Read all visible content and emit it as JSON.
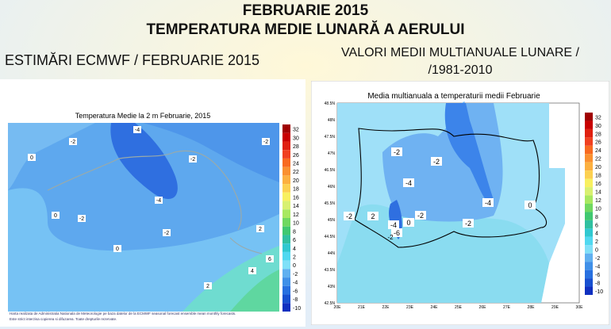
{
  "header": {
    "title": "FEBRUARIE 2015",
    "subtitle": "TEMPERATURA MEDIE LUNARĂ A AERULUI"
  },
  "left": {
    "heading": "ESTIMĂRI ECMWF / FEBRUARIE 2015",
    "map_title": "Temperatura Medie la 2 m Februarie, 2015",
    "colorbar": [
      "32",
      "30",
      "28",
      "26",
      "24",
      "22",
      "20",
      "18",
      "16",
      "14",
      "12",
      "10",
      "8",
      "6",
      "4",
      "2",
      "0",
      "-2",
      "-4",
      "-6",
      "-8",
      "-10"
    ],
    "contour_labels": [
      "-4",
      "-2",
      "0",
      "-2",
      "-2",
      "-4",
      "0",
      "-2",
      "-2",
      "2",
      "0",
      "6",
      "4",
      "2"
    ],
    "footnote": [
      "Harta realizata de Administratia Nationala de Meteorologie pe baza datelor de la ECMWF seasonal forecast ensemble mean monthly forecasts.",
      "Este strict interzisa copierea si difuzarea. Toate drepturile rezervate."
    ]
  },
  "right": {
    "heading": [
      "VALORI MEDII MULTIANUALE LUNARE /",
      "/1981-2010"
    ],
    "map_title": "Media multianuala a temperaturii medii Februarie",
    "colorbar": [
      "32",
      "30",
      "28",
      "26",
      "24",
      "22",
      "20",
      "18",
      "16",
      "14",
      "12",
      "10",
      "8",
      "6",
      "4",
      "2",
      "0",
      "-2",
      "-4",
      "-6",
      "-8",
      "-10"
    ],
    "lat_labels": [
      "48.5N",
      "48N",
      "47.5N",
      "47N",
      "46.5N",
      "46N",
      "45.5N",
      "45N",
      "44.5N",
      "44N",
      "43.5N",
      "43N",
      "42.5N"
    ],
    "lon_labels": [
      "20E",
      "21E",
      "22E",
      "23E",
      "24E",
      "25E",
      "26E",
      "27E",
      "28E",
      "29E",
      "30E"
    ],
    "contour_labels": [
      "-2",
      "-2",
      "-4",
      "-2",
      "2",
      "-4",
      "-6",
      "-2",
      "0",
      "-4",
      "-2",
      "0",
      "-2"
    ]
  }
}
